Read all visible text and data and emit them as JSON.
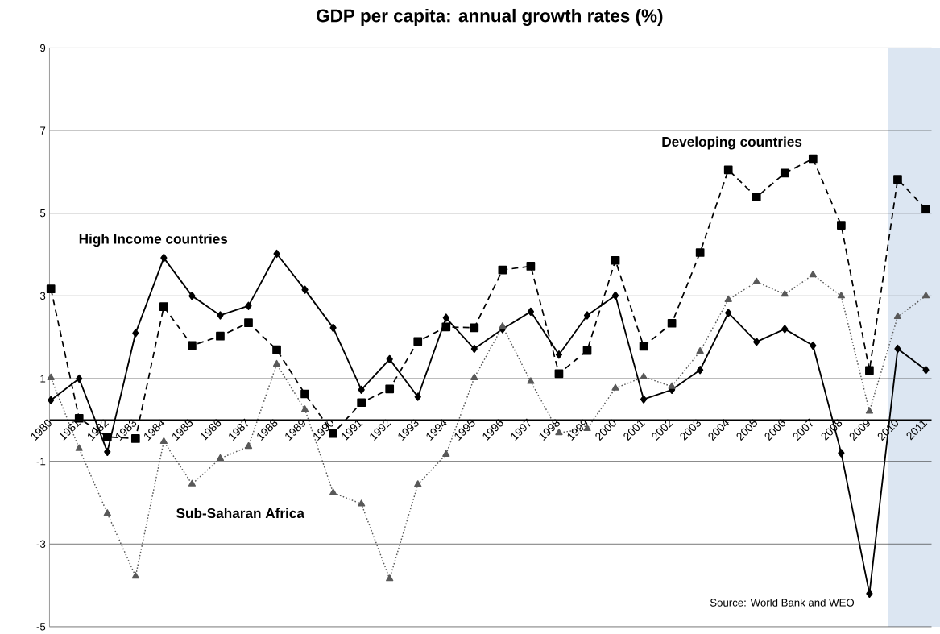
{
  "chart_data": {
    "type": "line",
    "title": "GDP per capita: annual growth rates (%)",
    "categories": [
      "1980",
      "1981",
      "1982",
      "1983",
      "1984",
      "1985",
      "1986",
      "1987",
      "1988",
      "1989",
      "1990",
      "1991",
      "1992",
      "1993",
      "1994",
      "1995",
      "1996",
      "1997",
      "1998",
      "1999",
      "2000",
      "2001",
      "2002",
      "2003",
      "2004",
      "2005",
      "2006",
      "2007",
      "2008",
      "2009",
      "2010",
      "2011"
    ],
    "series": [
      {
        "name": "High Income countries",
        "color": "#000000",
        "marker": "diamond",
        "line_style": "solid",
        "values": [
          0.48,
          1.0,
          -0.77,
          2.1,
          3.92,
          3.0,
          2.53,
          2.76,
          4.02,
          3.15,
          2.23,
          0.73,
          1.47,
          0.56,
          2.47,
          1.72,
          2.2,
          2.62,
          1.58,
          2.53,
          3.01,
          0.5,
          0.73,
          1.21,
          2.59,
          1.89,
          2.2,
          1.8,
          -0.8,
          -4.2,
          1.72,
          1.21
        ]
      },
      {
        "name": "Developing countries",
        "color": "#000000",
        "marker": "square",
        "line_style": "dashed",
        "values": [
          3.17,
          0.04,
          -0.41,
          -0.45,
          2.74,
          1.8,
          2.03,
          2.35,
          1.7,
          0.63,
          -0.33,
          0.42,
          0.75,
          1.9,
          2.25,
          2.23,
          3.63,
          3.72,
          1.12,
          1.68,
          3.86,
          1.78,
          2.34,
          4.05,
          6.05,
          5.39,
          5.97,
          6.32,
          4.71,
          1.2,
          5.82,
          5.1
        ]
      },
      {
        "name": "Sub-Saharan Africa",
        "color": "#595959",
        "marker": "triangle",
        "line_style": "dotted",
        "values": [
          1.02,
          -0.69,
          -2.26,
          -3.78,
          -0.52,
          -1.55,
          -0.93,
          -0.64,
          1.35,
          0.25,
          -1.76,
          -2.03,
          -3.84,
          -1.56,
          -0.83,
          1.02,
          2.26,
          0.93,
          -0.31,
          -0.21,
          0.77,
          1.04,
          0.81,
          1.66,
          2.91,
          3.34,
          3.04,
          3.51,
          3.0,
          0.21,
          2.5,
          3.0
        ]
      }
    ],
    "ylim": [
      -5,
      9
    ],
    "yticks": [
      -5,
      -3,
      -1,
      1,
      3,
      5,
      7,
      9
    ],
    "grid": "y",
    "bands": [
      {
        "axis": "x",
        "from": "2010",
        "to": "2011",
        "color": "#dce6f2"
      }
    ],
    "annotations": [
      "Source: World Bank and WEO"
    ]
  }
}
